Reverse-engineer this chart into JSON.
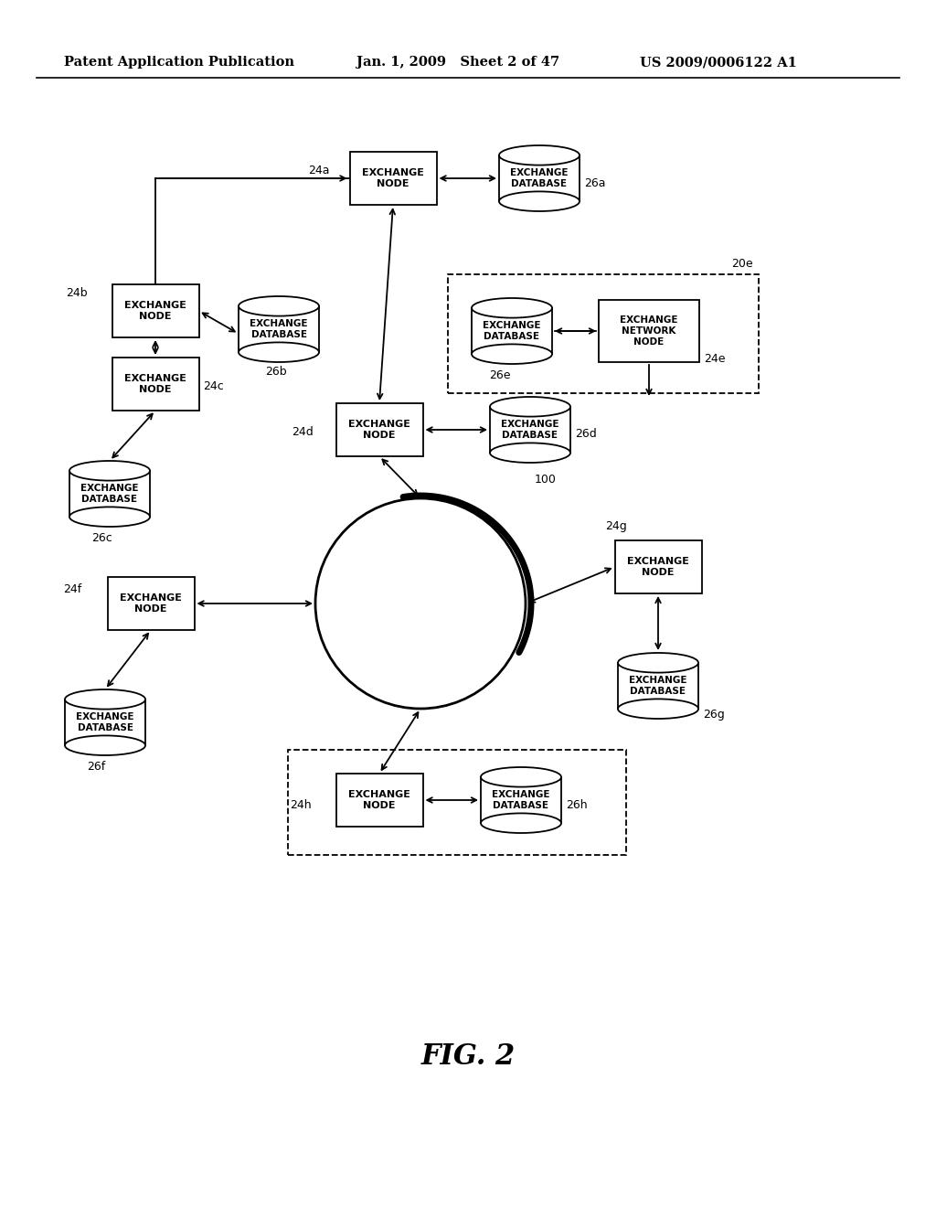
{
  "bg_color": "#ffffff",
  "header_left": "Patent Application Publication",
  "header_mid": "Jan. 1, 2009   Sheet 2 of 47",
  "header_right": "US 2009/0006122 A1",
  "figure_label": "FIG. 2"
}
